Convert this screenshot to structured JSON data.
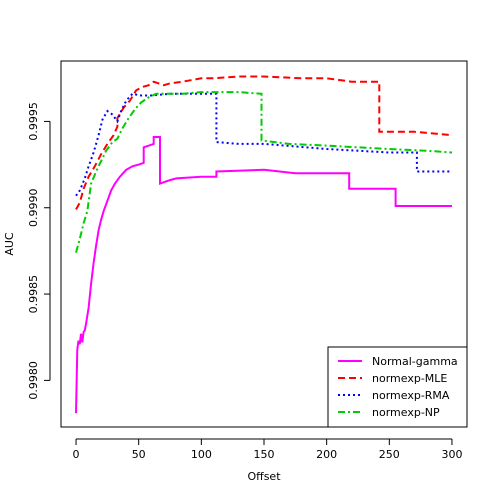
{
  "chart_data": {
    "type": "line",
    "title": "",
    "xlabel": "Offset",
    "ylabel": "AUC",
    "xlim": [
      -12,
      312
    ],
    "ylim": [
      0.99773,
      0.99985
    ],
    "x_ticks": [
      0,
      50,
      100,
      150,
      200,
      250,
      300
    ],
    "y_ticks": [
      0.998,
      0.9985,
      0.999,
      0.9995
    ],
    "y_tick_labels": [
      "0.9980",
      "0.9985",
      "0.9990",
      "0.9995"
    ],
    "grid": false,
    "legend_position": "bottom-right",
    "series": [
      {
        "name": "Normal-gamma",
        "color": "#ff00ff",
        "dash": "solid",
        "points": [
          [
            0,
            0.99781
          ],
          [
            1,
            0.99818
          ],
          [
            2,
            0.99823
          ],
          [
            3,
            0.99821
          ],
          [
            4,
            0.99827
          ],
          [
            5,
            0.99822
          ],
          [
            6,
            0.99828
          ],
          [
            7,
            0.99829
          ],
          [
            8,
            0.99833
          ],
          [
            10,
            0.99842
          ],
          [
            12,
            0.99856
          ],
          [
            14,
            0.99868
          ],
          [
            16,
            0.99878
          ],
          [
            18,
            0.99887
          ],
          [
            20,
            0.99893
          ],
          [
            22,
            0.99898
          ],
          [
            25,
            0.99904
          ],
          [
            28,
            0.9991
          ],
          [
            31,
            0.99914
          ],
          [
            35,
            0.99918
          ],
          [
            40,
            0.99922
          ],
          [
            45,
            0.99924
          ],
          [
            50,
            0.99925
          ],
          [
            54,
            0.99926
          ],
          [
            54,
            0.99935
          ],
          [
            62,
            0.99937
          ],
          [
            62,
            0.99941
          ],
          [
            67,
            0.99941
          ],
          [
            67,
            0.99914
          ],
          [
            75,
            0.99916
          ],
          [
            80,
            0.99917
          ],
          [
            100,
            0.99918
          ],
          [
            112,
            0.99918
          ],
          [
            112,
            0.99921
          ],
          [
            150,
            0.99922
          ],
          [
            175,
            0.9992
          ],
          [
            200,
            0.9992
          ],
          [
            218,
            0.9992
          ],
          [
            218,
            0.99911
          ],
          [
            255,
            0.99911
          ],
          [
            255,
            0.99901
          ],
          [
            300,
            0.99901
          ]
        ]
      },
      {
        "name": "normexp-MLE",
        "color": "#ff0000",
        "dash": "dashed",
        "points": [
          [
            0,
            0.99899
          ],
          [
            3,
            0.99903
          ],
          [
            6,
            0.99911
          ],
          [
            10,
            0.99918
          ],
          [
            15,
            0.99924
          ],
          [
            20,
            0.99931
          ],
          [
            25,
            0.99937
          ],
          [
            30,
            0.99942
          ],
          [
            33,
            0.99947
          ],
          [
            33,
            0.99952
          ],
          [
            38,
            0.99958
          ],
          [
            43,
            0.99962
          ],
          [
            48,
            0.99968
          ],
          [
            53,
            0.9997
          ],
          [
            58,
            0.99971
          ],
          [
            62,
            0.99973
          ],
          [
            66,
            0.99972
          ],
          [
            70,
            0.99971
          ],
          [
            75,
            0.99972
          ],
          [
            85,
            0.99973
          ],
          [
            100,
            0.99975
          ],
          [
            110,
            0.99975
          ],
          [
            130,
            0.99976
          ],
          [
            150,
            0.99976
          ],
          [
            180,
            0.99975
          ],
          [
            200,
            0.99975
          ],
          [
            220,
            0.99973
          ],
          [
            242,
            0.99973
          ],
          [
            242,
            0.99944
          ],
          [
            270,
            0.99944
          ],
          [
            300,
            0.99942
          ]
        ]
      },
      {
        "name": "normexp-RMA",
        "color": "#0000ff",
        "dash": "dotted",
        "points": [
          [
            0,
            0.99907
          ],
          [
            3,
            0.9991
          ],
          [
            7,
            0.99917
          ],
          [
            10,
            0.99924
          ],
          [
            14,
            0.99932
          ],
          [
            18,
            0.99942
          ],
          [
            21,
            0.99951
          ],
          [
            25,
            0.99956
          ],
          [
            29,
            0.99954
          ],
          [
            33,
            0.9995
          ],
          [
            36,
            0.99956
          ],
          [
            40,
            0.99962
          ],
          [
            45,
            0.99966
          ],
          [
            52,
            0.99965
          ],
          [
            60,
            0.99965
          ],
          [
            75,
            0.99966
          ],
          [
            90,
            0.99966
          ],
          [
            110,
            0.99966
          ],
          [
            112,
            0.99966
          ],
          [
            112,
            0.99938
          ],
          [
            130,
            0.99937
          ],
          [
            150,
            0.99937
          ],
          [
            200,
            0.99934
          ],
          [
            250,
            0.99932
          ],
          [
            272,
            0.99932
          ],
          [
            272,
            0.99921
          ],
          [
            285,
            0.99921
          ],
          [
            300,
            0.99921
          ]
        ]
      },
      {
        "name": "normexp-NP",
        "color": "#00cc00",
        "dash": "dashdot",
        "points": [
          [
            0,
            0.99874
          ],
          [
            3,
            0.99882
          ],
          [
            6,
            0.99891
          ],
          [
            9,
            0.99898
          ],
          [
            12,
            0.99914
          ],
          [
            16,
            0.99921
          ],
          [
            20,
            0.99927
          ],
          [
            24,
            0.99933
          ],
          [
            29,
            0.99938
          ],
          [
            33,
            0.9994
          ],
          [
            37,
            0.99946
          ],
          [
            42,
            0.99952
          ],
          [
            47,
            0.99957
          ],
          [
            52,
            0.99961
          ],
          [
            58,
            0.99964
          ],
          [
            64,
            0.99966
          ],
          [
            72,
            0.99966
          ],
          [
            85,
            0.99966
          ],
          [
            100,
            0.99967
          ],
          [
            115,
            0.99967
          ],
          [
            130,
            0.99967
          ],
          [
            148,
            0.99966
          ],
          [
            148,
            0.99939
          ],
          [
            170,
            0.99937
          ],
          [
            200,
            0.99936
          ],
          [
            250,
            0.99934
          ],
          [
            280,
            0.99933
          ],
          [
            300,
            0.99932
          ]
        ]
      }
    ]
  }
}
